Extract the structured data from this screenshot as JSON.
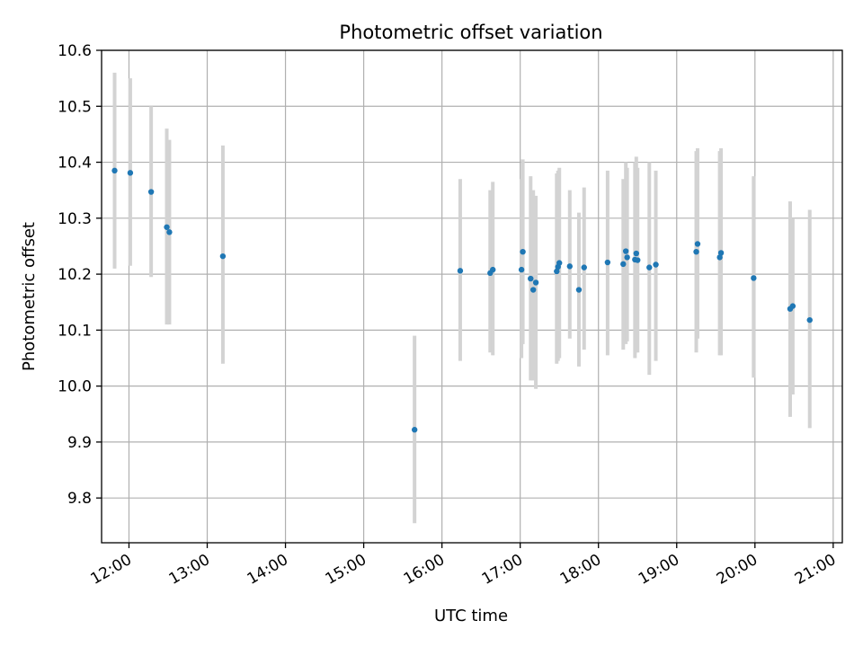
{
  "chart_data": {
    "type": "scatter",
    "title": "Photometric offset variation",
    "xlabel": "UTC time",
    "ylabel": "Photometric offset",
    "x_tick_labels": [
      "12:00",
      "13:00",
      "14:00",
      "15:00",
      "16:00",
      "17:00",
      "18:00",
      "19:00",
      "20:00",
      "21:00"
    ],
    "x_tick_hours": [
      12,
      13,
      14,
      15,
      16,
      17,
      18,
      19,
      20,
      21
    ],
    "y_ticks": [
      9.8,
      9.9,
      10.0,
      10.1,
      10.2,
      10.3,
      10.4,
      10.5,
      10.6
    ],
    "y_tick_labels": [
      "9.8",
      "9.9",
      "10.0",
      "10.1",
      "10.2",
      "10.3",
      "10.4",
      "10.5",
      "10.6"
    ],
    "xlim": [
      "11:39",
      "21:07"
    ],
    "ylim": [
      9.72,
      10.6
    ],
    "grid": true,
    "colors": {
      "points": "#1f77b4",
      "error_bars": "#d3d3d3"
    },
    "points": [
      {
        "t": "11:49",
        "y": 10.385,
        "lo": 10.21,
        "hi": 10.56
      },
      {
        "t": "12:01",
        "y": 10.381,
        "lo": 10.215,
        "hi": 10.55
      },
      {
        "t": "12:17",
        "y": 10.347,
        "lo": 10.195,
        "hi": 10.5
      },
      {
        "t": "12:29",
        "y": 10.284,
        "lo": 10.11,
        "hi": 10.46
      },
      {
        "t": "12:31",
        "y": 10.275,
        "lo": 10.11,
        "hi": 10.44
      },
      {
        "t": "13:12",
        "y": 10.232,
        "lo": 10.04,
        "hi": 10.43
      },
      {
        "t": "15:39",
        "y": 9.922,
        "lo": 9.755,
        "hi": 10.09
      },
      {
        "t": "16:14",
        "y": 10.206,
        "lo": 10.045,
        "hi": 10.37
      },
      {
        "t": "16:37",
        "y": 10.202,
        "lo": 10.06,
        "hi": 10.35
      },
      {
        "t": "16:39",
        "y": 10.208,
        "lo": 10.055,
        "hi": 10.365
      },
      {
        "t": "17:01",
        "y": 10.208,
        "lo": 10.05,
        "hi": 10.37
      },
      {
        "t": "17:02",
        "y": 10.24,
        "lo": 10.075,
        "hi": 10.405
      },
      {
        "t": "17:08",
        "y": 10.192,
        "lo": 10.01,
        "hi": 10.375
      },
      {
        "t": "17:10",
        "y": 10.172,
        "lo": 10.01,
        "hi": 10.35
      },
      {
        "t": "17:12",
        "y": 10.185,
        "lo": 9.995,
        "hi": 10.34
      },
      {
        "t": "17:28",
        "y": 10.205,
        "lo": 10.04,
        "hi": 10.38
      },
      {
        "t": "17:29",
        "y": 10.213,
        "lo": 10.045,
        "hi": 10.385
      },
      {
        "t": "17:30",
        "y": 10.22,
        "lo": 10.05,
        "hi": 10.39
      },
      {
        "t": "17:38",
        "y": 10.214,
        "lo": 10.085,
        "hi": 10.35
      },
      {
        "t": "17:45",
        "y": 10.172,
        "lo": 10.035,
        "hi": 10.31
      },
      {
        "t": "17:49",
        "y": 10.212,
        "lo": 10.065,
        "hi": 10.355
      },
      {
        "t": "18:07",
        "y": 10.221,
        "lo": 10.055,
        "hi": 10.385
      },
      {
        "t": "18:19",
        "y": 10.218,
        "lo": 10.065,
        "hi": 10.37
      },
      {
        "t": "18:21",
        "y": 10.241,
        "lo": 10.075,
        "hi": 10.4
      },
      {
        "t": "18:22",
        "y": 10.23,
        "lo": 10.08,
        "hi": 10.39
      },
      {
        "t": "18:28",
        "y": 10.226,
        "lo": 10.05,
        "hi": 10.4
      },
      {
        "t": "18:29",
        "y": 10.237,
        "lo": 10.06,
        "hi": 10.41
      },
      {
        "t": "18:30",
        "y": 10.225,
        "lo": 10.06,
        "hi": 10.39
      },
      {
        "t": "18:39",
        "y": 10.212,
        "lo": 10.02,
        "hi": 10.4
      },
      {
        "t": "18:44",
        "y": 10.217,
        "lo": 10.045,
        "hi": 10.385
      },
      {
        "t": "19:15",
        "y": 10.24,
        "lo": 10.06,
        "hi": 10.42
      },
      {
        "t": "19:16",
        "y": 10.254,
        "lo": 10.085,
        "hi": 10.425
      },
      {
        "t": "19:33",
        "y": 10.23,
        "lo": 10.055,
        "hi": 10.42
      },
      {
        "t": "19:34",
        "y": 10.238,
        "lo": 10.055,
        "hi": 10.425
      },
      {
        "t": "19:59",
        "y": 10.193,
        "lo": 10.015,
        "hi": 10.375
      },
      {
        "t": "20:27",
        "y": 10.138,
        "lo": 9.945,
        "hi": 10.33
      },
      {
        "t": "20:29",
        "y": 10.143,
        "lo": 9.985,
        "hi": 10.3
      },
      {
        "t": "20:42",
        "y": 10.118,
        "lo": 9.925,
        "hi": 10.315
      }
    ]
  }
}
